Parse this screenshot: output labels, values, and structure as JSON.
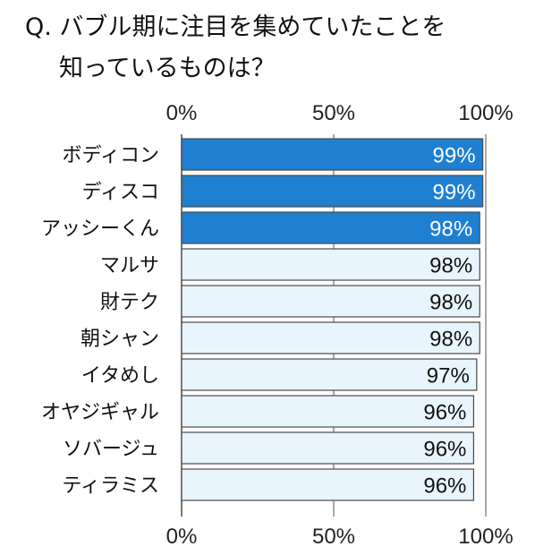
{
  "title": {
    "line1": "Q. バブル期に注目を集めていたことを",
    "line2": "知っているものは？"
  },
  "chart_data": {
    "type": "bar",
    "orientation": "horizontal",
    "categories": [
      "ボディコン",
      "ディスコ",
      "アッシーくん",
      "マルサ",
      "財テク",
      "朝シャン",
      "イタめし",
      "オヤジギャル",
      "ソバージュ",
      "ティラミス"
    ],
    "values": [
      99,
      99,
      98,
      98,
      98,
      98,
      97,
      96,
      96,
      96
    ],
    "data_labels": [
      "99%",
      "99%",
      "98%",
      "98%",
      "98%",
      "98%",
      "97%",
      "96%",
      "96%",
      "96%"
    ],
    "highlight_top": 3,
    "xlim": [
      0,
      100
    ],
    "x_ticks": [
      "0%",
      "50%",
      "100%"
    ],
    "x_tick_values": [
      0,
      50,
      100
    ],
    "grid": true,
    "colors": {
      "highlight_fill": "#1f7fd1",
      "highlight_text": "#ffffff",
      "normal_fill": "#e8f5fd",
      "normal_text": "#111111",
      "bar_stroke": "#4a4a4a",
      "grid": "#555555"
    }
  }
}
